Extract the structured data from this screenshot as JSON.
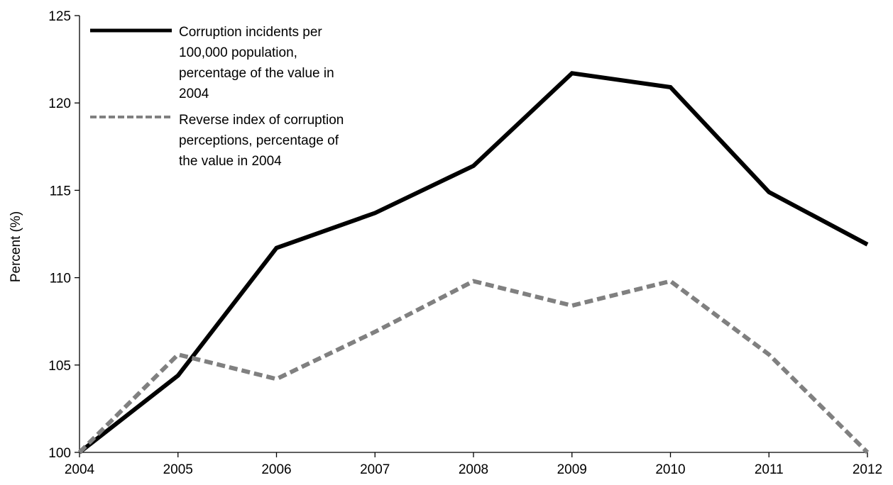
{
  "chart_data": {
    "type": "line",
    "title": "",
    "xlabel": "",
    "ylabel": "Percent (%)",
    "x": [
      2004,
      2005,
      2006,
      2007,
      2008,
      2009,
      2010,
      2011,
      2012
    ],
    "x_tick_labels": [
      "2004",
      "2005",
      "2006",
      "2007",
      "2008",
      "2009",
      "2010",
      "2011",
      "2012"
    ],
    "ylim": [
      100,
      125
    ],
    "y_ticks": [
      100,
      105,
      110,
      115,
      120,
      125
    ],
    "y_tick_labels": [
      "100",
      "105",
      "110",
      "115",
      "120",
      "125"
    ],
    "grid": false,
    "legend_position": "top-left",
    "series": [
      {
        "name": "Corruption incidents per 100,000 population, percentage of the value in 2004",
        "legend_lines": [
          "Corruption incidents per",
          "100,000 population,",
          "percentage of the value in",
          "2004"
        ],
        "values": [
          100,
          104.4,
          111.7,
          113.7,
          116.4,
          121.7,
          120.9,
          114.9,
          111.9
        ],
        "color": "#000000",
        "style": "solid"
      },
      {
        "name": "Reverse index of corruption perceptions, percentage of the value in 2004",
        "legend_lines": [
          "Reverse index of corruption",
          "perceptions, percentage of",
          "the value in 2004"
        ],
        "values": [
          100,
          105.6,
          104.2,
          106.9,
          109.8,
          108.4,
          109.8,
          105.6,
          100
        ],
        "color": "#808080",
        "style": "dashed"
      }
    ]
  }
}
